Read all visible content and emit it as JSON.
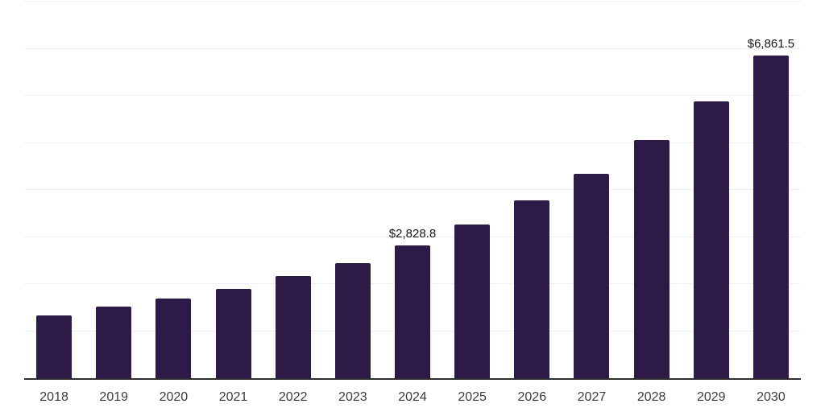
{
  "chart_data": {
    "type": "bar",
    "title": "",
    "xlabel": "",
    "ylabel": "",
    "categories": [
      "2018",
      "2019",
      "2020",
      "2021",
      "2022",
      "2023",
      "2024",
      "2025",
      "2026",
      "2027",
      "2028",
      "2029",
      "2030"
    ],
    "values": [
      1331,
      1517,
      1689,
      1894,
      2166,
      2440,
      2828.8,
      3258,
      3770,
      4350,
      5065,
      5885,
      6861.5
    ],
    "data_labels": [
      {
        "category": "2024",
        "text": "$2,828.8"
      },
      {
        "category": "2030",
        "text": "$6,861.5"
      }
    ],
    "ylim": [
      0,
      8000
    ],
    "grid_step": 1000,
    "grid": "horizontal",
    "legend_position": "none",
    "colors": {
      "bar": "#2e1a47",
      "axis_line": "#2f2f2f",
      "gridline": "#f0f0f1",
      "tick_label": "#3c3c3c",
      "data_label": "#141414",
      "background": "#ffffff"
    }
  }
}
